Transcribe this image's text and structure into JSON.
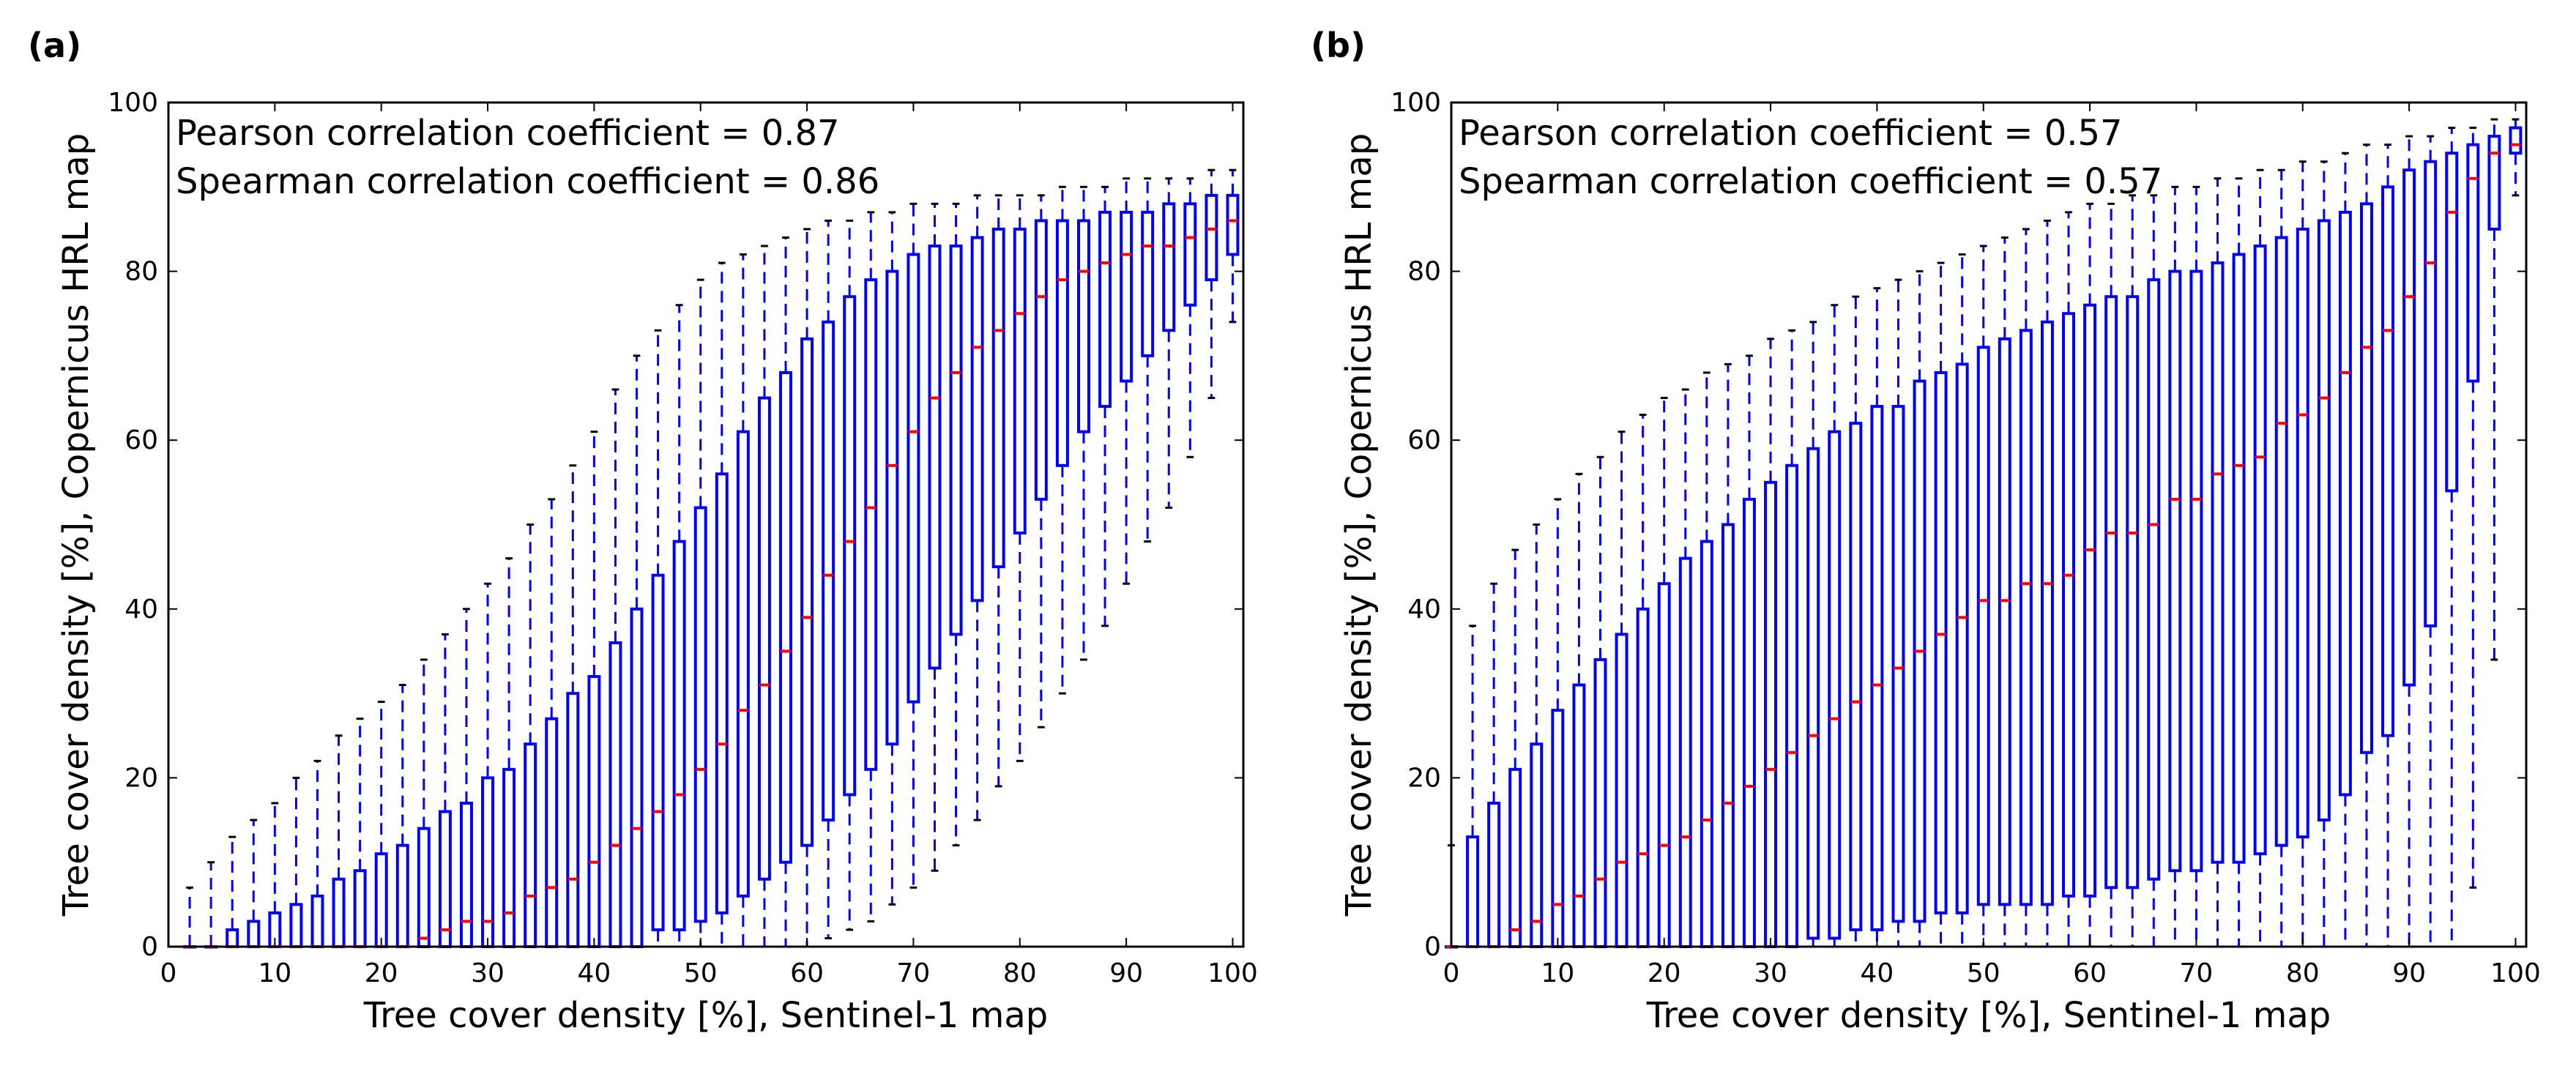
{
  "chart_data": [
    {
      "panel_label": "(a)",
      "type": "boxplot",
      "xlabel": "Tree cover density [%], Sentinel-1 map",
      "ylabel": "Tree cover density [%], Copernicus HRL map",
      "xlim": [
        0,
        101
      ],
      "ylim": [
        0,
        100
      ],
      "xticks": [
        0,
        10,
        20,
        30,
        40,
        50,
        60,
        70,
        80,
        90,
        100
      ],
      "yticks": [
        0,
        20,
        40,
        60,
        80,
        100
      ],
      "annotations": [
        "Pearson correlation coefficient = 0.87",
        "Spearman correlation coefficient = 0.86"
      ],
      "colors": {
        "box": "#0000ff",
        "median": "#ff0000",
        "cap": "#000000"
      },
      "boxes": [
        {
          "x": 2,
          "whislo": 0,
          "q1": 0,
          "med": 0,
          "q3": 0,
          "whishi": 7
        },
        {
          "x": 4,
          "whislo": 0,
          "q1": 0,
          "med": 0,
          "q3": 0,
          "whishi": 10
        },
        {
          "x": 6,
          "whislo": 0,
          "q1": 0,
          "med": 0,
          "q3": 2,
          "whishi": 13
        },
        {
          "x": 8,
          "whislo": 0,
          "q1": 0,
          "med": 0,
          "q3": 3,
          "whishi": 15
        },
        {
          "x": 10,
          "whislo": 0,
          "q1": 0,
          "med": 0,
          "q3": 4,
          "whishi": 17
        },
        {
          "x": 12,
          "whislo": 0,
          "q1": 0,
          "med": 0,
          "q3": 5,
          "whishi": 20
        },
        {
          "x": 14,
          "whislo": 0,
          "q1": 0,
          "med": 0,
          "q3": 6,
          "whishi": 22
        },
        {
          "x": 16,
          "whislo": 0,
          "q1": 0,
          "med": 0,
          "q3": 8,
          "whishi": 25
        },
        {
          "x": 18,
          "whislo": 0,
          "q1": 0,
          "med": 0,
          "q3": 9,
          "whishi": 27
        },
        {
          "x": 20,
          "whislo": 0,
          "q1": 0,
          "med": 0,
          "q3": 11,
          "whishi": 29
        },
        {
          "x": 22,
          "whislo": 0,
          "q1": 0,
          "med": 0,
          "q3": 12,
          "whishi": 31
        },
        {
          "x": 24,
          "whislo": 0,
          "q1": 0,
          "med": 1,
          "q3": 14,
          "whishi": 34
        },
        {
          "x": 26,
          "whislo": 0,
          "q1": 0,
          "med": 2,
          "q3": 16,
          "whishi": 37
        },
        {
          "x": 28,
          "whislo": 0,
          "q1": 0,
          "med": 3,
          "q3": 17,
          "whishi": 40
        },
        {
          "x": 30,
          "whislo": 0,
          "q1": 0,
          "med": 3,
          "q3": 20,
          "whishi": 43
        },
        {
          "x": 32,
          "whislo": 0,
          "q1": 0,
          "med": 4,
          "q3": 21,
          "whishi": 46
        },
        {
          "x": 34,
          "whislo": 0,
          "q1": 0,
          "med": 6,
          "q3": 24,
          "whishi": 50
        },
        {
          "x": 36,
          "whislo": 0,
          "q1": 0,
          "med": 7,
          "q3": 27,
          "whishi": 53
        },
        {
          "x": 38,
          "whislo": 0,
          "q1": 0,
          "med": 8,
          "q3": 30,
          "whishi": 57
        },
        {
          "x": 40,
          "whislo": 0,
          "q1": 0,
          "med": 10,
          "q3": 32,
          "whishi": 61
        },
        {
          "x": 42,
          "whislo": 0,
          "q1": 0,
          "med": 12,
          "q3": 36,
          "whishi": 66
        },
        {
          "x": 44,
          "whislo": 0,
          "q1": 0,
          "med": 14,
          "q3": 40,
          "whishi": 70
        },
        {
          "x": 46,
          "whislo": 0,
          "q1": 2,
          "med": 16,
          "q3": 44,
          "whishi": 73
        },
        {
          "x": 48,
          "whislo": 0,
          "q1": 2,
          "med": 18,
          "q3": 48,
          "whishi": 76
        },
        {
          "x": 50,
          "whislo": 0,
          "q1": 3,
          "med": 21,
          "q3": 52,
          "whishi": 79
        },
        {
          "x": 52,
          "whislo": 0,
          "q1": 4,
          "med": 24,
          "q3": 56,
          "whishi": 81
        },
        {
          "x": 54,
          "whislo": 0,
          "q1": 6,
          "med": 28,
          "q3": 61,
          "whishi": 82
        },
        {
          "x": 56,
          "whislo": 0,
          "q1": 8,
          "med": 31,
          "q3": 65,
          "whishi": 83
        },
        {
          "x": 58,
          "whislo": 0,
          "q1": 10,
          "med": 35,
          "q3": 68,
          "whishi": 84
        },
        {
          "x": 60,
          "whislo": 0,
          "q1": 12,
          "med": 39,
          "q3": 72,
          "whishi": 85
        },
        {
          "x": 62,
          "whislo": 1,
          "q1": 15,
          "med": 44,
          "q3": 74,
          "whishi": 86
        },
        {
          "x": 64,
          "whislo": 2,
          "q1": 18,
          "med": 48,
          "q3": 77,
          "whishi": 86
        },
        {
          "x": 66,
          "whislo": 3,
          "q1": 21,
          "med": 52,
          "q3": 79,
          "whishi": 87
        },
        {
          "x": 68,
          "whislo": 5,
          "q1": 24,
          "med": 57,
          "q3": 80,
          "whishi": 87
        },
        {
          "x": 70,
          "whislo": 7,
          "q1": 29,
          "med": 61,
          "q3": 82,
          "whishi": 88
        },
        {
          "x": 72,
          "whislo": 9,
          "q1": 33,
          "med": 65,
          "q3": 83,
          "whishi": 88
        },
        {
          "x": 74,
          "whislo": 12,
          "q1": 37,
          "med": 68,
          "q3": 83,
          "whishi": 88
        },
        {
          "x": 76,
          "whislo": 15,
          "q1": 41,
          "med": 71,
          "q3": 84,
          "whishi": 89
        },
        {
          "x": 78,
          "whislo": 19,
          "q1": 45,
          "med": 73,
          "q3": 85,
          "whishi": 89
        },
        {
          "x": 80,
          "whislo": 22,
          "q1": 49,
          "med": 75,
          "q3": 85,
          "whishi": 89
        },
        {
          "x": 82,
          "whislo": 26,
          "q1": 53,
          "med": 77,
          "q3": 86,
          "whishi": 89
        },
        {
          "x": 84,
          "whislo": 30,
          "q1": 57,
          "med": 79,
          "q3": 86,
          "whishi": 90
        },
        {
          "x": 86,
          "whislo": 34,
          "q1": 61,
          "med": 80,
          "q3": 86,
          "whishi": 90
        },
        {
          "x": 88,
          "whislo": 38,
          "q1": 64,
          "med": 81,
          "q3": 87,
          "whishi": 90
        },
        {
          "x": 90,
          "whislo": 43,
          "q1": 67,
          "med": 82,
          "q3": 87,
          "whishi": 91
        },
        {
          "x": 92,
          "whislo": 48,
          "q1": 70,
          "med": 83,
          "q3": 87,
          "whishi": 91
        },
        {
          "x": 94,
          "whislo": 52,
          "q1": 73,
          "med": 83,
          "q3": 88,
          "whishi": 91
        },
        {
          "x": 96,
          "whislo": 58,
          "q1": 76,
          "med": 84,
          "q3": 88,
          "whishi": 91
        },
        {
          "x": 98,
          "whislo": 65,
          "q1": 79,
          "med": 85,
          "q3": 89,
          "whishi": 92
        },
        {
          "x": 100,
          "whislo": 74,
          "q1": 82,
          "med": 86,
          "q3": 89,
          "whishi": 92
        }
      ]
    },
    {
      "panel_label": "(b)",
      "type": "boxplot",
      "xlabel": "Tree cover density [%], Sentinel-1 map",
      "ylabel": "Tree cover density [%], Copernicus HRL map",
      "xlim": [
        0,
        101
      ],
      "ylim": [
        0,
        100
      ],
      "xticks": [
        0,
        10,
        20,
        30,
        40,
        50,
        60,
        70,
        80,
        90,
        100
      ],
      "yticks": [
        0,
        20,
        40,
        60,
        80,
        100
      ],
      "annotations": [
        "Pearson correlation coefficient = 0.57",
        "Spearman correlation coefficient = 0.57"
      ],
      "colors": {
        "box": "#0000ff",
        "median": "#ff0000",
        "cap": "#000000"
      },
      "boxes": [
        {
          "x": 0,
          "whislo": 0,
          "q1": 0,
          "med": 0,
          "q3": 0,
          "whishi": 12
        },
        {
          "x": 2,
          "whislo": 0,
          "q1": 0,
          "med": 0,
          "q3": 13,
          "whishi": 38
        },
        {
          "x": 4,
          "whislo": 0,
          "q1": 0,
          "med": 0,
          "q3": 17,
          "whishi": 43
        },
        {
          "x": 6,
          "whislo": 0,
          "q1": 0,
          "med": 2,
          "q3": 21,
          "whishi": 47
        },
        {
          "x": 8,
          "whislo": 0,
          "q1": 0,
          "med": 3,
          "q3": 24,
          "whishi": 50
        },
        {
          "x": 10,
          "whislo": 0,
          "q1": 0,
          "med": 5,
          "q3": 28,
          "whishi": 53
        },
        {
          "x": 12,
          "whislo": 0,
          "q1": 0,
          "med": 6,
          "q3": 31,
          "whishi": 56
        },
        {
          "x": 14,
          "whislo": 0,
          "q1": 0,
          "med": 8,
          "q3": 34,
          "whishi": 58
        },
        {
          "x": 16,
          "whislo": 0,
          "q1": 0,
          "med": 10,
          "q3": 37,
          "whishi": 61
        },
        {
          "x": 18,
          "whislo": 0,
          "q1": 0,
          "med": 11,
          "q3": 40,
          "whishi": 63
        },
        {
          "x": 20,
          "whislo": 0,
          "q1": 0,
          "med": 12,
          "q3": 43,
          "whishi": 65
        },
        {
          "x": 22,
          "whislo": 0,
          "q1": 0,
          "med": 13,
          "q3": 46,
          "whishi": 66
        },
        {
          "x": 24,
          "whislo": 0,
          "q1": 0,
          "med": 15,
          "q3": 48,
          "whishi": 68
        },
        {
          "x": 26,
          "whislo": 0,
          "q1": 0,
          "med": 17,
          "q3": 50,
          "whishi": 69
        },
        {
          "x": 28,
          "whislo": 0,
          "q1": 0,
          "med": 19,
          "q3": 53,
          "whishi": 70
        },
        {
          "x": 30,
          "whislo": 0,
          "q1": 0,
          "med": 21,
          "q3": 55,
          "whishi": 72
        },
        {
          "x": 32,
          "whislo": 0,
          "q1": 0,
          "med": 23,
          "q3": 57,
          "whishi": 73
        },
        {
          "x": 34,
          "whislo": 0,
          "q1": 1,
          "med": 25,
          "q3": 59,
          "whishi": 74
        },
        {
          "x": 36,
          "whislo": 0,
          "q1": 1,
          "med": 27,
          "q3": 61,
          "whishi": 76
        },
        {
          "x": 38,
          "whislo": 0,
          "q1": 2,
          "med": 29,
          "q3": 62,
          "whishi": 77
        },
        {
          "x": 40,
          "whislo": 0,
          "q1": 2,
          "med": 31,
          "q3": 64,
          "whishi": 78
        },
        {
          "x": 42,
          "whislo": 0,
          "q1": 3,
          "med": 33,
          "q3": 64,
          "whishi": 79
        },
        {
          "x": 44,
          "whislo": 0,
          "q1": 3,
          "med": 35,
          "q3": 67,
          "whishi": 80
        },
        {
          "x": 46,
          "whislo": 0,
          "q1": 4,
          "med": 37,
          "q3": 68,
          "whishi": 81
        },
        {
          "x": 48,
          "whislo": 0,
          "q1": 4,
          "med": 39,
          "q3": 69,
          "whishi": 82
        },
        {
          "x": 50,
          "whislo": 0,
          "q1": 5,
          "med": 41,
          "q3": 71,
          "whishi": 83
        },
        {
          "x": 52,
          "whislo": 0,
          "q1": 5,
          "med": 41,
          "q3": 72,
          "whishi": 84
        },
        {
          "x": 54,
          "whislo": 0,
          "q1": 5,
          "med": 43,
          "q3": 73,
          "whishi": 85
        },
        {
          "x": 56,
          "whislo": 0,
          "q1": 5,
          "med": 43,
          "q3": 74,
          "whishi": 86
        },
        {
          "x": 58,
          "whislo": 0,
          "q1": 6,
          "med": 44,
          "q3": 75,
          "whishi": 87
        },
        {
          "x": 60,
          "whislo": 0,
          "q1": 6,
          "med": 47,
          "q3": 76,
          "whishi": 88
        },
        {
          "x": 62,
          "whislo": 0,
          "q1": 7,
          "med": 49,
          "q3": 77,
          "whishi": 88
        },
        {
          "x": 64,
          "whislo": 0,
          "q1": 7,
          "med": 49,
          "q3": 77,
          "whishi": 89
        },
        {
          "x": 66,
          "whislo": 0,
          "q1": 8,
          "med": 50,
          "q3": 79,
          "whishi": 89
        },
        {
          "x": 68,
          "whislo": 0,
          "q1": 9,
          "med": 53,
          "q3": 80,
          "whishi": 90
        },
        {
          "x": 70,
          "whislo": 0,
          "q1": 9,
          "med": 53,
          "q3": 80,
          "whishi": 90
        },
        {
          "x": 72,
          "whislo": 0,
          "q1": 10,
          "med": 56,
          "q3": 81,
          "whishi": 91
        },
        {
          "x": 74,
          "whislo": 0,
          "q1": 10,
          "med": 57,
          "q3": 82,
          "whishi": 91
        },
        {
          "x": 76,
          "whislo": 0,
          "q1": 11,
          "med": 58,
          "q3": 83,
          "whishi": 92
        },
        {
          "x": 78,
          "whislo": 0,
          "q1": 12,
          "med": 62,
          "q3": 84,
          "whishi": 92
        },
        {
          "x": 80,
          "whislo": 0,
          "q1": 13,
          "med": 63,
          "q3": 85,
          "whishi": 93
        },
        {
          "x": 82,
          "whislo": 0,
          "q1": 15,
          "med": 65,
          "q3": 86,
          "whishi": 93
        },
        {
          "x": 84,
          "whislo": 0,
          "q1": 18,
          "med": 68,
          "q3": 87,
          "whishi": 94
        },
        {
          "x": 86,
          "whislo": 0,
          "q1": 23,
          "med": 71,
          "q3": 88,
          "whishi": 95
        },
        {
          "x": 88,
          "whislo": 0,
          "q1": 25,
          "med": 73,
          "q3": 90,
          "whishi": 95
        },
        {
          "x": 90,
          "whislo": 0,
          "q1": 31,
          "med": 77,
          "q3": 92,
          "whishi": 96
        },
        {
          "x": 92,
          "whislo": 0,
          "q1": 38,
          "med": 81,
          "q3": 93,
          "whishi": 96
        },
        {
          "x": 94,
          "whislo": 0,
          "q1": 54,
          "med": 87,
          "q3": 94,
          "whishi": 97
        },
        {
          "x": 96,
          "whislo": 7,
          "q1": 67,
          "med": 91,
          "q3": 95,
          "whishi": 97
        },
        {
          "x": 98,
          "whislo": 34,
          "q1": 85,
          "med": 94,
          "q3": 96,
          "whishi": 98
        },
        {
          "x": 100,
          "whislo": 89,
          "q1": 94,
          "med": 95,
          "q3": 97,
          "whishi": 98
        }
      ]
    }
  ]
}
